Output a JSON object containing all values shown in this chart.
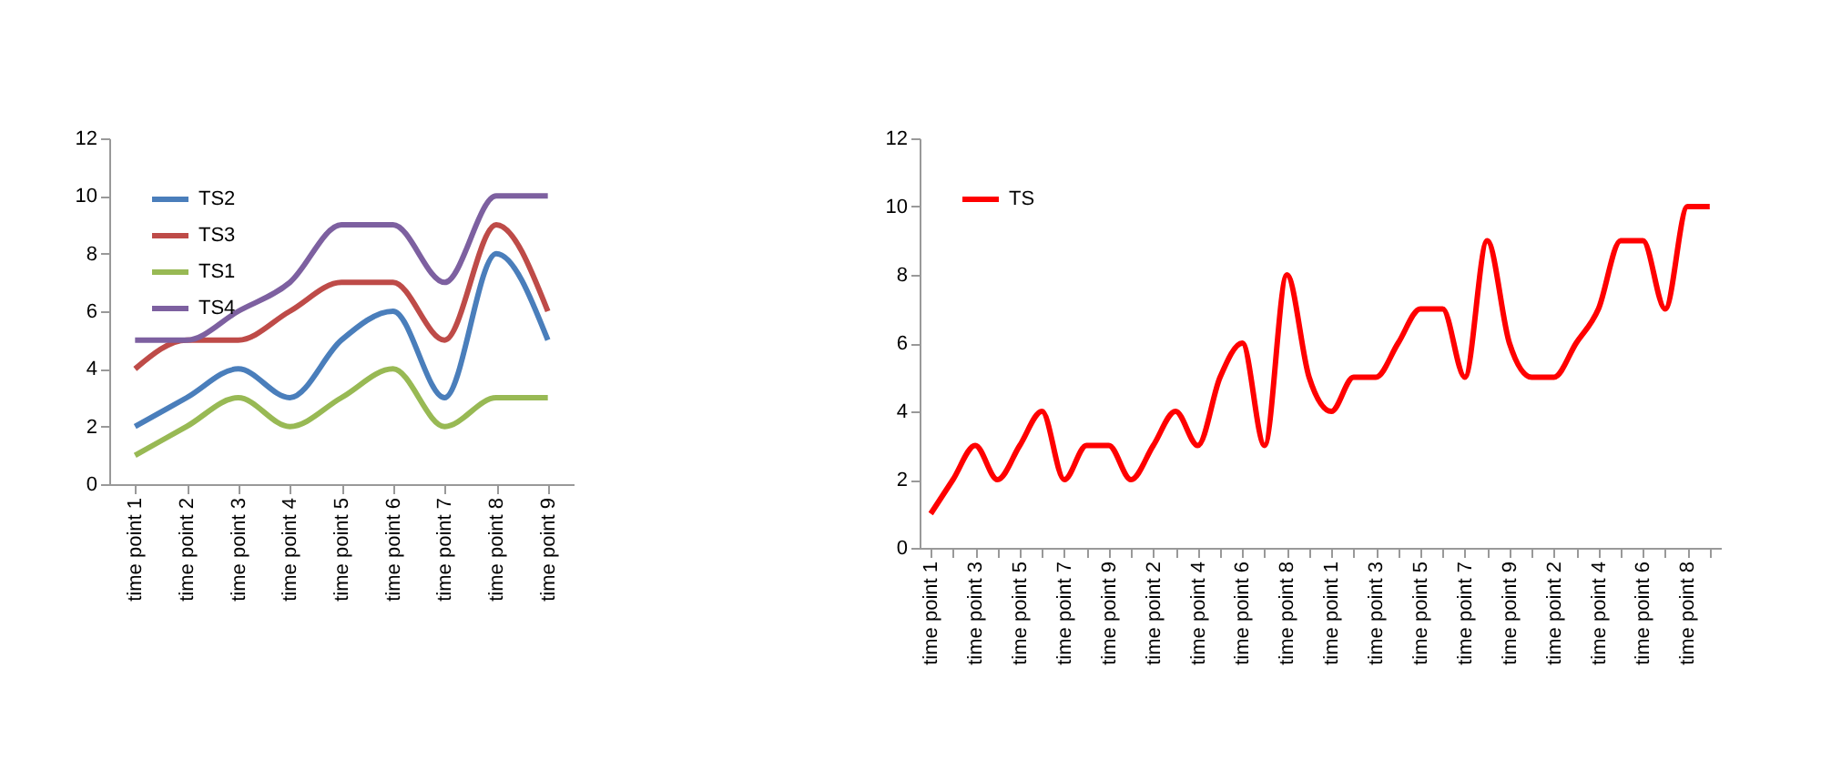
{
  "chart_data": [
    {
      "type": "line",
      "categories": [
        "time point 1",
        "time point 2",
        "time point 3",
        "time point 4",
        "time point 5",
        "time point 6",
        "time point 7",
        "time point 8",
        "time point 9"
      ],
      "ylim": [
        0,
        12
      ],
      "yticks": [
        0,
        2,
        4,
        6,
        8,
        10,
        12
      ],
      "grid": false,
      "legend": "top left",
      "marker": "none",
      "line_style": "solid",
      "series": [
        {
          "name": "TS2",
          "color": "#4a7ebb",
          "values": [
            2,
            3,
            4,
            3,
            5,
            6,
            3,
            8,
            5
          ]
        },
        {
          "name": "TS3",
          "color": "#be4b48",
          "values": [
            4,
            5,
            5,
            6,
            7,
            7,
            5,
            9,
            6
          ]
        },
        {
          "name": "TS1",
          "color": "#98b954",
          "values": [
            1,
            2,
            3,
            2,
            3,
            4,
            2,
            3,
            3
          ]
        },
        {
          "name": "TS4",
          "color": "#7d60a0",
          "values": [
            5,
            5,
            6,
            7,
            9,
            9,
            7,
            10,
            10
          ]
        }
      ]
    },
    {
      "type": "line",
      "categories": [
        "time point 1",
        null,
        "time point 3",
        null,
        "time point 5",
        null,
        "time point 7",
        null,
        "time point 9",
        null,
        "time point 2",
        null,
        "time point 4",
        null,
        "time point 6",
        null,
        "time point 8",
        null,
        "time point 1",
        null,
        "time point 3",
        null,
        "time point 5",
        null,
        "time point 7",
        null,
        "time point 9",
        null,
        "time point 2",
        null,
        "time point 4",
        null,
        "time point 6",
        null,
        "time point 8",
        null
      ],
      "ylim": [
        0,
        12
      ],
      "yticks": [
        0,
        2,
        4,
        6,
        8,
        10,
        12
      ],
      "grid": false,
      "legend": "top left",
      "marker": "none",
      "line_style": "solid",
      "series": [
        {
          "name": "TS",
          "color": "#ff0000",
          "values": [
            1,
            2,
            3,
            2,
            3,
            4,
            2,
            3,
            3,
            2,
            3,
            4,
            3,
            5,
            6,
            3,
            8,
            5,
            4,
            5,
            5,
            6,
            7,
            7,
            5,
            9,
            6,
            5,
            5,
            6,
            7,
            9,
            9,
            7,
            10,
            10
          ]
        }
      ]
    }
  ]
}
